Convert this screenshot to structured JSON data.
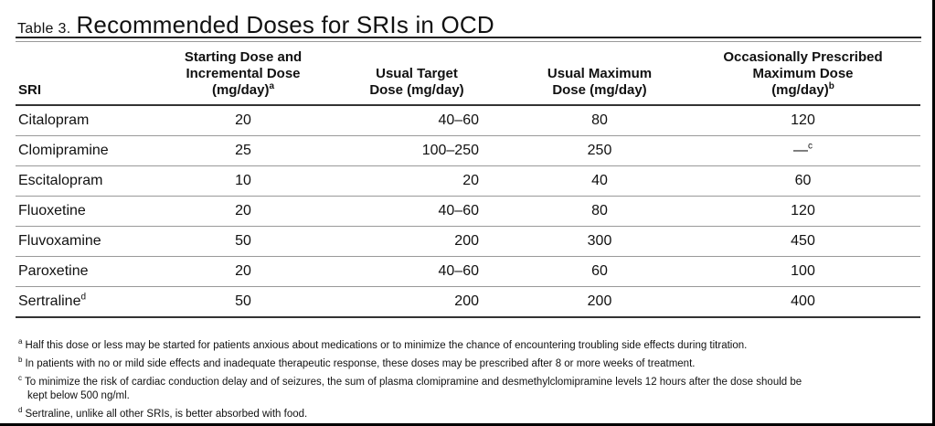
{
  "title": {
    "label": "Table 3.",
    "text": "Recommended Doses for SRIs in OCD"
  },
  "columns": [
    {
      "lines": [
        "SRI"
      ],
      "sup": ""
    },
    {
      "lines": [
        "Starting Dose and",
        "Incremental Dose",
        "(mg/day)"
      ],
      "sup": "a"
    },
    {
      "lines": [
        "Usual Target",
        "Dose (mg/day)"
      ],
      "sup": ""
    },
    {
      "lines": [
        "Usual Maximum",
        "Dose (mg/day)"
      ],
      "sup": ""
    },
    {
      "lines": [
        "Occasionally Prescribed",
        "Maximum Dose",
        "(mg/day)"
      ],
      "sup": "b"
    }
  ],
  "rows": [
    {
      "sri": "Citalopram",
      "sri_sup": "",
      "start": "20",
      "target": "40–60",
      "max": "80",
      "occasional": "120",
      "occasional_sup": ""
    },
    {
      "sri": "Clomipramine",
      "sri_sup": "",
      "start": "25",
      "target": "100–250",
      "max": "250",
      "occasional": "—",
      "occasional_sup": "c"
    },
    {
      "sri": "Escitalopram",
      "sri_sup": "",
      "start": "10",
      "target": "20",
      "max": "40",
      "occasional": "60",
      "occasional_sup": ""
    },
    {
      "sri": "Fluoxetine",
      "sri_sup": "",
      "start": "20",
      "target": "40–60",
      "max": "80",
      "occasional": "120",
      "occasional_sup": ""
    },
    {
      "sri": "Fluvoxamine",
      "sri_sup": "",
      "start": "50",
      "target": "200",
      "max": "300",
      "occasional": "450",
      "occasional_sup": ""
    },
    {
      "sri": "Paroxetine",
      "sri_sup": "",
      "start": "20",
      "target": "40–60",
      "max": "60",
      "occasional": "100",
      "occasional_sup": ""
    },
    {
      "sri": "Sertraline",
      "sri_sup": "d",
      "start": "50",
      "target": "200",
      "max": "200",
      "occasional": "400",
      "occasional_sup": ""
    }
  ],
  "footnotes": [
    {
      "sym": "a",
      "lines": [
        "Half this dose or less may be started for patients anxious about medications or to minimize the chance of encountering troubling side effects during titration."
      ]
    },
    {
      "sym": "b",
      "lines": [
        "In patients with no or mild side effects and inadequate therapeutic response, these doses may be prescribed after 8 or more weeks of treatment."
      ]
    },
    {
      "sym": "c",
      "lines": [
        "To minimize the risk of cardiac conduction delay and of seizures, the sum of plasma clomipramine and desmethylclomipramine levels 12 hours after the dose should be",
        "kept below 500 ng/ml."
      ]
    },
    {
      "sym": "d",
      "lines": [
        "Sertraline, unlike all other SRIs, is better absorbed with food."
      ]
    }
  ]
}
